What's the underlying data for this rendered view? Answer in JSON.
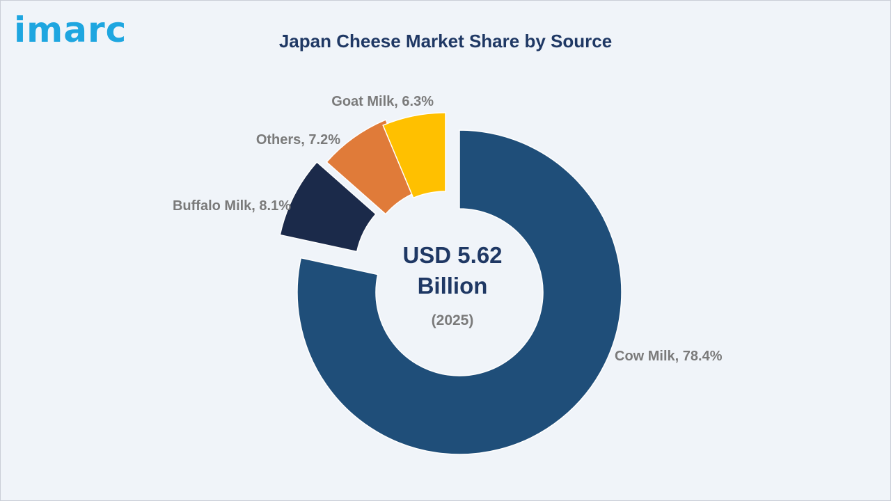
{
  "brand": {
    "logo_text": "imarc"
  },
  "chart_data": {
    "type": "pie",
    "title": "Japan Cheese Market Share by Source",
    "unit": "%",
    "slices": [
      {
        "name": "Cow Milk",
        "value": 78.4,
        "label": "Cow Milk, 78.4%",
        "color": "#1f4e79"
      },
      {
        "name": "Buffalo Milk",
        "value": 8.1,
        "label": "Buffalo Milk, 8.1%",
        "color": "#1b2a4a"
      },
      {
        "name": "Others",
        "value": 7.2,
        "label": "Others, 7.2%",
        "color": "#e07b39"
      },
      {
        "name": "Goat Milk",
        "value": 6.3,
        "label": "Goat Milk, 6.3%",
        "color": "#ffc000"
      }
    ],
    "center_text": {
      "value_line1": "USD 5.62",
      "value_line2": "Billion",
      "year": "(2025)"
    }
  }
}
